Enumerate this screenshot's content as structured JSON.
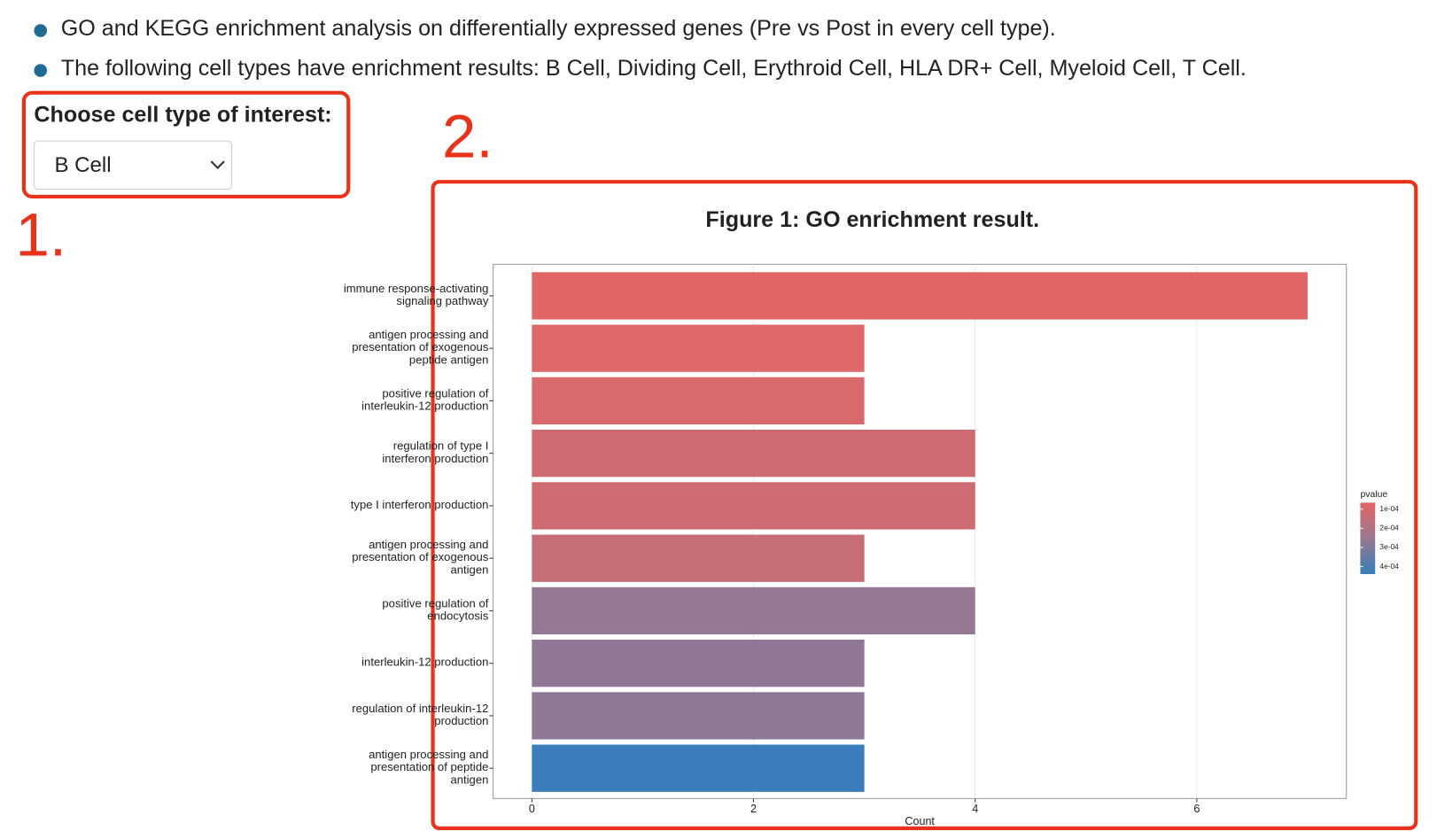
{
  "bullets": [
    "GO and KEGG enrichment analysis on differentially expressed genes (Pre vs Post in every cell type).",
    "The following cell types have enrichment results: B Cell, Dividing Cell, Erythroid Cell, HLA DR+ Cell, Myeloid Cell, T Cell."
  ],
  "selector": {
    "label": "Choose cell type of interest:",
    "value": "B Cell"
  },
  "annotations": [
    "1.",
    "2."
  ],
  "chart_data": {
    "type": "barh",
    "title": "Figure 1: GO enrichment result.",
    "categories": [
      "immune response-activating\nsignaling pathway",
      "antigen processing and\npresentation of exogenous\npeptide antigen",
      "positive regulation of\ninterleukin-12 production",
      "regulation of type I\ninterferon production",
      "type I interferon production",
      "antigen processing and\npresentation of exogenous\nantigen",
      "positive regulation of\nendocytosis",
      "interleukin-12 production",
      "regulation of interleukin-12\nproduction",
      "antigen processing and\npresentation of peptide\nantigen"
    ],
    "values": [
      7,
      3,
      3,
      4,
      4,
      3,
      4,
      3,
      3,
      3
    ],
    "colors": [
      "#e06666",
      "#dd6769",
      "#d96a6c",
      "#cd6a72",
      "#cd6a72",
      "#c66e76",
      "#957994",
      "#907795",
      "#8e7896",
      "#3a7dba"
    ],
    "xlabel": "Count",
    "xlim": [
      -0.35,
      7.35
    ],
    "xticks": [
      0,
      2,
      4,
      6
    ],
    "grid": true,
    "legend": {
      "title": "pvalue",
      "lim": [
        6.6e-05,
        0.000439
      ],
      "colors": [
        "#e26464",
        "#9a7891",
        "#377eb8"
      ],
      "ticks": [
        {
          "value": 0.0001,
          "label": "1e-04"
        },
        {
          "value": 0.0002,
          "label": "2e-04"
        },
        {
          "value": 0.0003,
          "label": "3e-04"
        },
        {
          "value": 0.0004,
          "label": "4e-04"
        }
      ]
    }
  }
}
